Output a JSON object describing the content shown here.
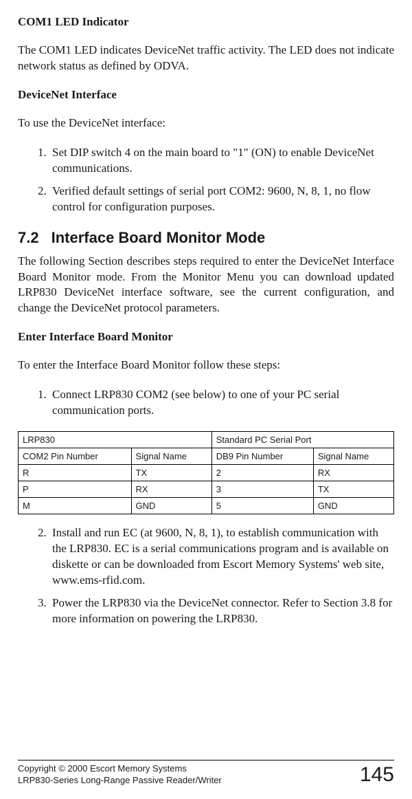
{
  "sec1": {
    "heading": "COM1 LED Indicator",
    "body": "The COM1 LED indicates DeviceNet traffic activity. The LED does not indicate network status as defined by ODVA."
  },
  "sec2": {
    "heading": "DeviceNet Interface",
    "intro": "To use the DeviceNet interface:",
    "items": [
      "Set DIP switch 4 on the main board to \"1\" (ON) to enable DeviceNet communications.",
      "Verified default settings of serial port COM2: 9600, N, 8, 1, no flow control for configuration purposes."
    ]
  },
  "sec3": {
    "num": "7.2",
    "title": "Interface Board Monitor Mode",
    "body": "The following Section describes steps required to enter the DeviceNet Interface Board Monitor mode. From the Monitor Menu you can download updated LRP830 DeviceNet interface software, see the current configuration, and change the DeviceNet protocol parameters."
  },
  "sec4": {
    "heading": "Enter Interface Board Monitor",
    "intro": "To enter the Interface Board Monitor follow these steps:",
    "step1": "Connect LRP830 COM2 (see below) to one of your PC serial communication ports."
  },
  "table": {
    "hdr_left": "LRP830",
    "hdr_right": "Standard PC Serial Port",
    "sub": [
      "COM2 Pin Number",
      "Signal Name",
      "DB9 Pin Number",
      "Signal Name"
    ],
    "rows": [
      [
        "R",
        "TX",
        "2",
        "RX"
      ],
      [
        "P",
        "RX",
        "3",
        "TX"
      ],
      [
        "M",
        "GND",
        "5",
        "GND"
      ]
    ]
  },
  "sec5": {
    "step2": "Install and run EC (at 9600, N, 8, 1), to establish communication with the LRP830. EC is a serial communications program and is available on diskette or can be downloaded from Escort Memory Systems' web site, www.ems-rfid.com.",
    "step3": "Power the LRP830 via the DeviceNet connector. Refer to Section 3.8 for more information on powering the LRP830."
  },
  "footer": {
    "line1": "Copyright © 2000 Escort Memory Systems",
    "line2": "LRP830-Series Long-Range Passive Reader/Writer",
    "page": "145"
  }
}
